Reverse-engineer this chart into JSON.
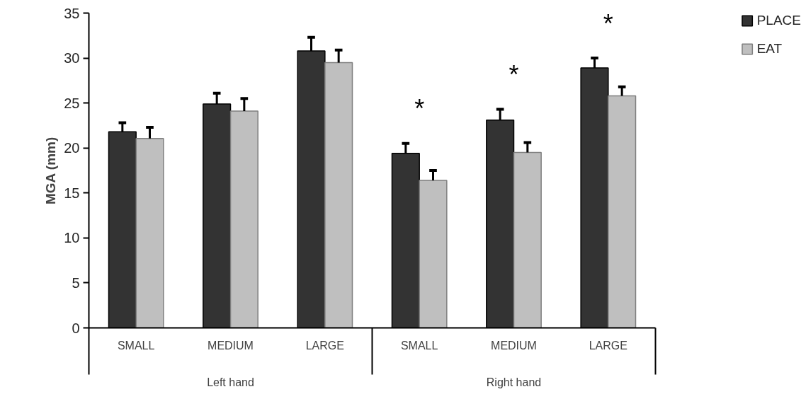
{
  "chart_data": {
    "type": "bar",
    "ylabel": "MGA (mm)",
    "categories": [
      "SMALL",
      "MEDIUM",
      "LARGE",
      "SMALL",
      "MEDIUM",
      "LARGE"
    ],
    "series": [
      {
        "name": "PLACE",
        "color": "#333333",
        "values": [
          21.8,
          24.9,
          30.8,
          19.4,
          23.1,
          28.9
        ],
        "errors": [
          [
            21.8,
            22.8
          ],
          [
            24.9,
            26.1
          ],
          [
            30.8,
            32.3
          ],
          [
            19.4,
            20.5
          ],
          [
            23.1,
            24.3
          ],
          [
            28.9,
            30.0
          ]
        ]
      },
      {
        "name": "EAT",
        "color": "#bfbfbf",
        "values": [
          21.05,
          24.1,
          29.5,
          16.4,
          19.5,
          25.8
        ],
        "errors": [
          [
            21.05,
            22.3
          ],
          [
            24.1,
            25.5
          ],
          [
            29.5,
            30.9
          ],
          [
            16.4,
            17.5
          ],
          [
            19.5,
            20.6
          ],
          [
            25.8,
            26.8
          ]
        ]
      }
    ],
    "annotations": [
      "Left hand",
      "Right hand",
      "*",
      "*",
      "*"
    ],
    "ylim": [
      0,
      35
    ],
    "yticks": [
      0,
      5,
      10,
      15,
      20,
      25,
      30,
      35
    ],
    "grid": false,
    "legend": "right"
  }
}
